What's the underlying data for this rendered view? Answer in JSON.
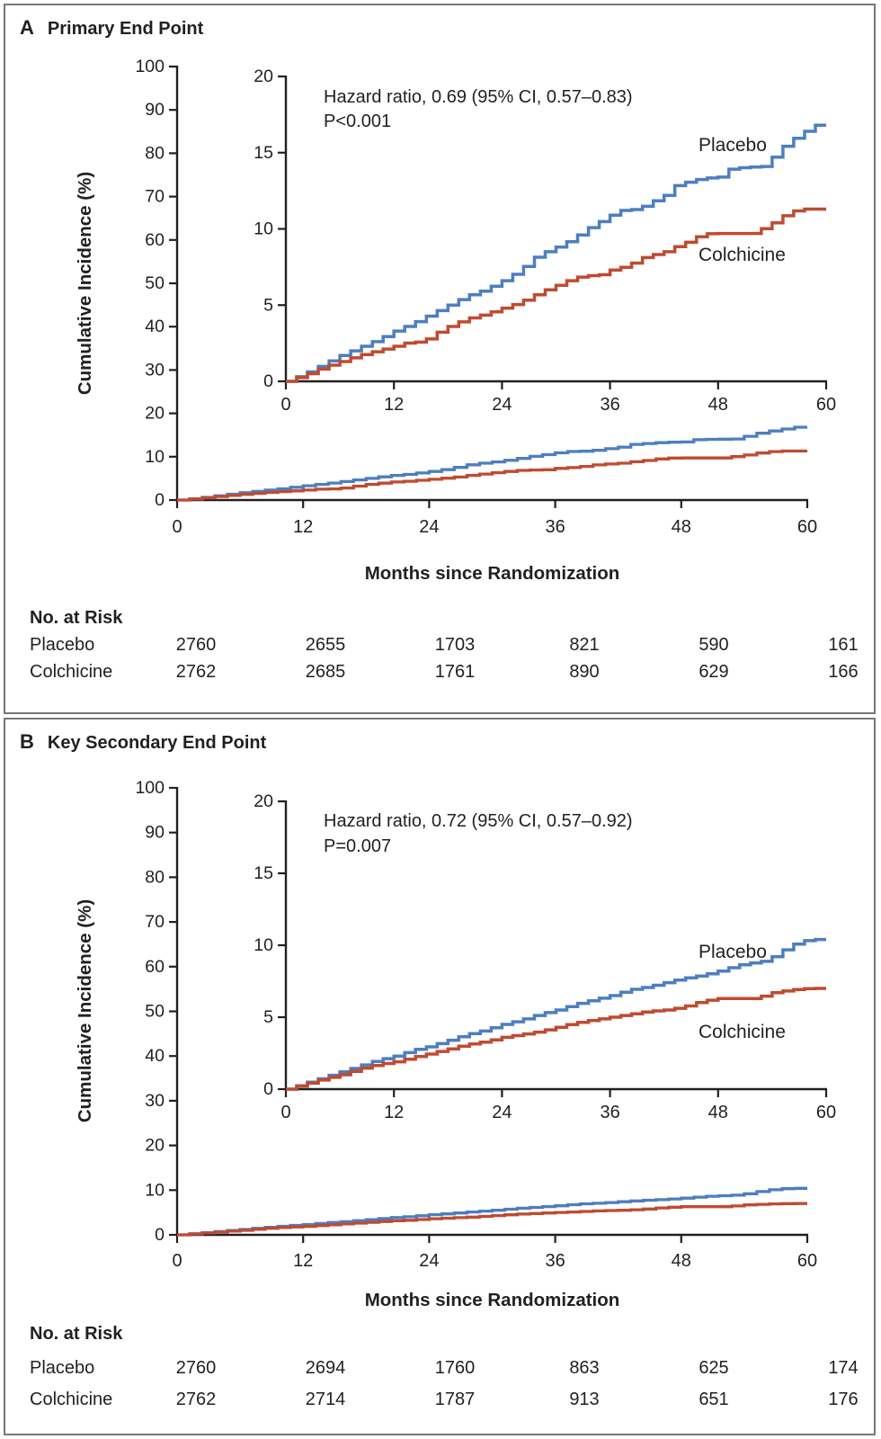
{
  "figure": {
    "type": "kaplan-meier-cumulative-incidence-figure",
    "panel_count": 2
  },
  "chart_data": [
    {
      "type": "line",
      "panel": "A",
      "title": "Primary End Point",
      "xlabel": "Months since Randomization",
      "ylabel": "Cumulative Incidence (%)",
      "x_ticks": [
        0,
        12,
        24,
        36,
        48,
        60
      ],
      "main_ylim": [
        0,
        100
      ],
      "main_yticks": [
        0,
        10,
        20,
        30,
        40,
        50,
        60,
        70,
        80,
        90,
        100
      ],
      "inset_ylim": [
        0,
        20
      ],
      "inset_yticks": [
        0,
        5,
        10,
        15,
        20
      ],
      "annotation": [
        "Hazard ratio, 0.69 (95% CI, 0.57–0.83)",
        "P<0.001"
      ],
      "legend_position": "inline-labels",
      "grid": false,
      "series": [
        {
          "name": "Placebo",
          "color": "#4d7ec0",
          "points": [
            [
              0,
              0
            ],
            [
              2,
              0.5
            ],
            [
              4,
              1.1
            ],
            [
              6,
              1.7
            ],
            [
              8,
              2.2
            ],
            [
              10,
              2.7
            ],
            [
              12,
              3.3
            ],
            [
              14,
              3.8
            ],
            [
              16,
              4.4
            ],
            [
              18,
              5.0
            ],
            [
              20,
              5.6
            ],
            [
              22,
              6.0
            ],
            [
              24,
              6.6
            ],
            [
              26,
              7.3
            ],
            [
              27,
              7.9
            ],
            [
              28,
              8.3
            ],
            [
              30,
              8.8
            ],
            [
              32,
              9.4
            ],
            [
              33,
              9.9
            ],
            [
              34,
              10.2
            ],
            [
              36,
              10.9
            ],
            [
              37,
              11.2
            ],
            [
              39,
              11.3
            ],
            [
              40,
              11.6
            ],
            [
              42,
              12.2
            ],
            [
              43,
              12.8
            ],
            [
              44,
              13.0
            ],
            [
              46,
              13.3
            ],
            [
              48,
              13.4
            ],
            [
              49,
              13.9
            ],
            [
              50,
              14.0
            ],
            [
              53,
              14.1
            ],
            [
              54,
              14.7
            ],
            [
              55,
              15.3
            ],
            [
              56,
              15.9
            ],
            [
              57,
              16.0
            ],
            [
              57.5,
              16.3
            ],
            [
              58,
              16.8
            ],
            [
              60,
              16.8
            ]
          ]
        },
        {
          "name": "Colchicine",
          "color": "#bf4b32",
          "points": [
            [
              0,
              0
            ],
            [
              2,
              0.4
            ],
            [
              4,
              0.9
            ],
            [
              6,
              1.3
            ],
            [
              8,
              1.7
            ],
            [
              10,
              2.0
            ],
            [
              12,
              2.3
            ],
            [
              13,
              2.5
            ],
            [
              15,
              2.6
            ],
            [
              16,
              2.9
            ],
            [
              17,
              3.3
            ],
            [
              18,
              3.6
            ],
            [
              20,
              4.1
            ],
            [
              22,
              4.4
            ],
            [
              24,
              4.8
            ],
            [
              26,
              5.2
            ],
            [
              28,
              5.8
            ],
            [
              30,
              6.3
            ],
            [
              32,
              6.8
            ],
            [
              33,
              6.9
            ],
            [
              35,
              7.0
            ],
            [
              36,
              7.3
            ],
            [
              38,
              7.6
            ],
            [
              39,
              8.0
            ],
            [
              40,
              8.2
            ],
            [
              42,
              8.5
            ],
            [
              43,
              8.8
            ],
            [
              44,
              9.0
            ],
            [
              45,
              9.3
            ],
            [
              46,
              9.6
            ],
            [
              47,
              9.7
            ],
            [
              52,
              9.7
            ],
            [
              53,
              10.1
            ],
            [
              54,
              10.4
            ],
            [
              55,
              10.8
            ],
            [
              56,
              11.1
            ],
            [
              57,
              11.3
            ],
            [
              60,
              11.3
            ]
          ]
        }
      ],
      "risk_table": {
        "title": "No. at Risk",
        "months": [
          0,
          12,
          24,
          36,
          48,
          60
        ],
        "rows": [
          {
            "label": "Placebo",
            "counts": [
              2760,
              2655,
              1703,
              821,
              590,
              161
            ]
          },
          {
            "label": "Colchicine",
            "counts": [
              2762,
              2685,
              1761,
              890,
              629,
              166
            ]
          }
        ]
      }
    },
    {
      "type": "line",
      "panel": "B",
      "title": "Key Secondary End Point",
      "xlabel": "Months since Randomization",
      "ylabel": "Cumulative Incidence (%)",
      "x_ticks": [
        0,
        12,
        24,
        36,
        48,
        60
      ],
      "main_ylim": [
        0,
        100
      ],
      "main_yticks": [
        0,
        10,
        20,
        30,
        40,
        50,
        60,
        70,
        80,
        90,
        100
      ],
      "inset_ylim": [
        0,
        20
      ],
      "inset_yticks": [
        0,
        5,
        10,
        15,
        20
      ],
      "annotation": [
        "Hazard ratio, 0.72 (95% CI, 0.57–0.92)",
        "P=0.007"
      ],
      "legend_position": "inline-labels",
      "grid": false,
      "series": [
        {
          "name": "Placebo",
          "color": "#4d7ec0",
          "points": [
            [
              0,
              0
            ],
            [
              2,
              0.4
            ],
            [
              4,
              0.8
            ],
            [
              6,
              1.2
            ],
            [
              8,
              1.6
            ],
            [
              10,
              2.0
            ],
            [
              12,
              2.3
            ],
            [
              14,
              2.7
            ],
            [
              16,
              3.0
            ],
            [
              18,
              3.4
            ],
            [
              20,
              3.8
            ],
            [
              22,
              4.1
            ],
            [
              24,
              4.5
            ],
            [
              26,
              4.8
            ],
            [
              28,
              5.2
            ],
            [
              30,
              5.5
            ],
            [
              32,
              5.9
            ],
            [
              34,
              6.2
            ],
            [
              36,
              6.5
            ],
            [
              38,
              6.9
            ],
            [
              40,
              7.1
            ],
            [
              42,
              7.4
            ],
            [
              44,
              7.7
            ],
            [
              46,
              7.9
            ],
            [
              48,
              8.2
            ],
            [
              50,
              8.6
            ],
            [
              52,
              8.8
            ],
            [
              53,
              8.9
            ],
            [
              54,
              9.2
            ],
            [
              55,
              9.6
            ],
            [
              56,
              10.0
            ],
            [
              57,
              10.2
            ],
            [
              58,
              10.4
            ],
            [
              60,
              10.4
            ]
          ]
        },
        {
          "name": "Colchicine",
          "color": "#bf4b32",
          "points": [
            [
              0,
              0
            ],
            [
              2,
              0.35
            ],
            [
              4,
              0.7
            ],
            [
              6,
              1.0
            ],
            [
              8,
              1.4
            ],
            [
              10,
              1.7
            ],
            [
              12,
              1.9
            ],
            [
              14,
              2.2
            ],
            [
              16,
              2.5
            ],
            [
              18,
              2.8
            ],
            [
              20,
              3.1
            ],
            [
              22,
              3.3
            ],
            [
              24,
              3.6
            ],
            [
              26,
              3.8
            ],
            [
              28,
              4.0
            ],
            [
              30,
              4.3
            ],
            [
              32,
              4.6
            ],
            [
              34,
              4.8
            ],
            [
              36,
              5.0
            ],
            [
              38,
              5.2
            ],
            [
              40,
              5.4
            ],
            [
              42,
              5.5
            ],
            [
              44,
              5.7
            ],
            [
              45,
              5.9
            ],
            [
              46,
              6.1
            ],
            [
              47,
              6.2
            ],
            [
              48,
              6.3
            ],
            [
              52,
              6.3
            ],
            [
              53,
              6.5
            ],
            [
              54,
              6.7
            ],
            [
              55,
              6.8
            ],
            [
              56,
              6.9
            ],
            [
              58,
              7.0
            ],
            [
              60,
              7.0
            ]
          ]
        }
      ],
      "risk_table": {
        "title": "No. at Risk",
        "months": [
          0,
          12,
          24,
          36,
          48,
          60
        ],
        "rows": [
          {
            "label": "Placebo",
            "counts": [
              2760,
              2694,
              1760,
              863,
              625,
              174
            ]
          },
          {
            "label": "Colchicine",
            "counts": [
              2762,
              2714,
              1787,
              913,
              651,
              176
            ]
          }
        ]
      }
    }
  ],
  "colors": {
    "placebo_line": "#4d7ec0",
    "colchicine_line": "#bf4b32",
    "axis_and_text": "#231f20",
    "panel_border": "#76777a",
    "background": "#ffffff"
  }
}
